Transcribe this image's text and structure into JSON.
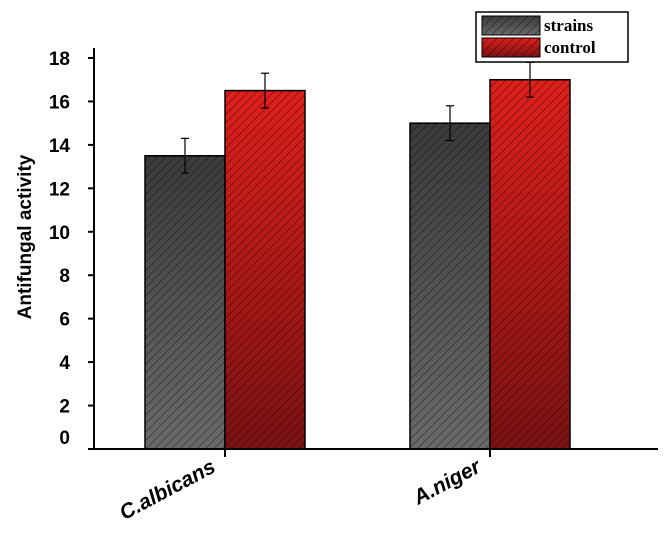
{
  "chart_data": {
    "type": "bar",
    "categories": [
      "C.albicans",
      "A.niger"
    ],
    "series": [
      {
        "name": "strains",
        "values": [
          13.5,
          15.0
        ],
        "errors": [
          0.8,
          0.8
        ],
        "color": "#3a3a3a"
      },
      {
        "name": "control",
        "values": [
          16.5,
          17.0
        ],
        "errors": [
          0.8,
          0.8
        ],
        "color": "#e0201c"
      }
    ],
    "ylabel": "Antifungal activity",
    "xlabel": "",
    "ylim": [
      0,
      18
    ],
    "yticks": [
      "0",
      "2",
      "4",
      "6",
      "8",
      "10",
      "12",
      "14",
      "16",
      "18"
    ],
    "legend_position": "top-right",
    "grid": false,
    "pattern": "diagonal-hatch"
  }
}
